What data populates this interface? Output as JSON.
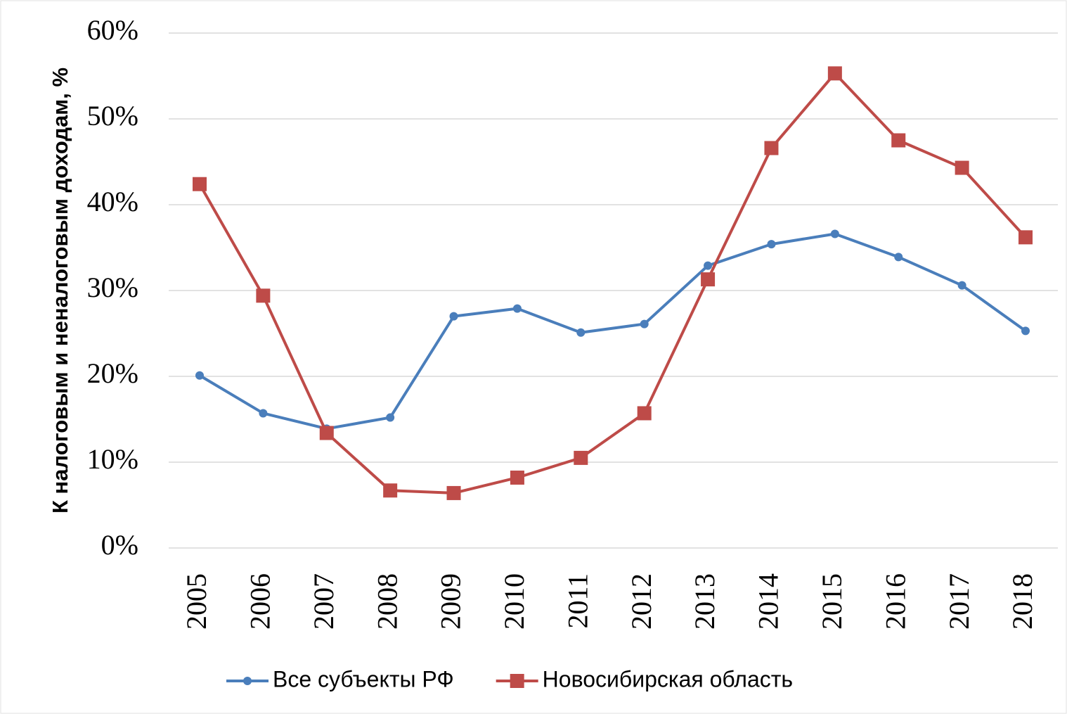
{
  "chart_data": {
    "type": "line",
    "y_label": "К налоговым и неналоговым доходам, %",
    "categories": [
      "2005",
      "2006",
      "2007",
      "2008",
      "2009",
      "2010",
      "2011",
      "2012",
      "2013",
      "2014",
      "2015",
      "2016",
      "2017",
      "2018"
    ],
    "series": [
      {
        "name": "Все субъекты РФ",
        "color": "#4a7ebb",
        "marker": "circle",
        "values": [
          20.1,
          15.7,
          13.9,
          15.2,
          27.0,
          27.9,
          25.1,
          26.1,
          32.9,
          35.4,
          36.6,
          33.9,
          30.6,
          25.3
        ]
      },
      {
        "name": "Новосибирская область",
        "color": "#be4b48",
        "marker": "square",
        "values": [
          42.4,
          29.4,
          13.4,
          6.7,
          6.4,
          8.2,
          10.5,
          15.7,
          31.3,
          46.6,
          55.3,
          47.5,
          44.3,
          36.2
        ]
      }
    ],
    "ylim": [
      0,
      60
    ],
    "yticks": [
      {
        "value": 0,
        "label": "0%"
      },
      {
        "value": 10,
        "label": "10%"
      },
      {
        "value": 20,
        "label": "20%"
      },
      {
        "value": 30,
        "label": "30%"
      },
      {
        "value": 40,
        "label": "40%"
      },
      {
        "value": 50,
        "label": "50%"
      },
      {
        "value": 60,
        "label": "60%"
      }
    ],
    "grid": true,
    "legend": "bottom"
  }
}
